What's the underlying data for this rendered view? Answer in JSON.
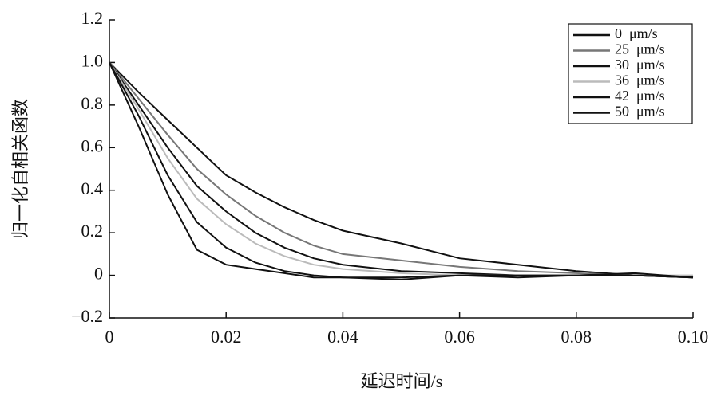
{
  "chart_data": {
    "type": "line",
    "xlabel": "延迟时间/s",
    "ylabel": "归一化自相关函数",
    "x": [
      0,
      0.005,
      0.01,
      0.015,
      0.02,
      0.025,
      0.03,
      0.035,
      0.04,
      0.05,
      0.06,
      0.07,
      0.08,
      0.09,
      0.1
    ],
    "series": [
      {
        "name": "0  μm/s",
        "color": "#111111",
        "values": [
          1.0,
          0.86,
          0.73,
          0.6,
          0.47,
          0.39,
          0.32,
          0.26,
          0.21,
          0.15,
          0.08,
          0.05,
          0.02,
          0.0,
          -0.01
        ]
      },
      {
        "name": "25  μm/s",
        "color": "#777777",
        "values": [
          1.0,
          0.83,
          0.66,
          0.5,
          0.38,
          0.28,
          0.2,
          0.14,
          0.1,
          0.07,
          0.04,
          0.02,
          0.01,
          0.0,
          -0.01
        ]
      },
      {
        "name": "30  μm/s",
        "color": "#111111",
        "values": [
          1.0,
          0.8,
          0.6,
          0.42,
          0.3,
          0.2,
          0.13,
          0.08,
          0.05,
          0.02,
          0.01,
          0.0,
          0.0,
          0.0,
          -0.01
        ]
      },
      {
        "name": "36  μm/s",
        "color": "#bbbbbb",
        "values": [
          1.0,
          0.78,
          0.55,
          0.36,
          0.24,
          0.15,
          0.09,
          0.05,
          0.03,
          0.01,
          0.0,
          0.0,
          0.0,
          0.0,
          0.0
        ]
      },
      {
        "name": "42  μm/s",
        "color": "#111111",
        "values": [
          1.0,
          0.75,
          0.47,
          0.25,
          0.13,
          0.06,
          0.02,
          0.0,
          -0.01,
          -0.01,
          0.0,
          0.0,
          0.0,
          0.0,
          -0.01
        ]
      },
      {
        "name": "50  μm/s",
        "color": "#111111",
        "values": [
          1.0,
          0.7,
          0.38,
          0.12,
          0.05,
          0.03,
          0.01,
          -0.01,
          -0.01,
          -0.02,
          0.0,
          -0.01,
          0.0,
          0.01,
          -0.01
        ]
      }
    ],
    "xlim": [
      0,
      0.1
    ],
    "xticks": [
      0,
      0.02,
      0.04,
      0.06,
      0.08,
      {
        "value": 0.1,
        "label": "0.10"
      }
    ],
    "ylim": [
      -0.2,
      1.2
    ],
    "yticks": [
      {
        "value": -0.2,
        "label": "−0.2"
      },
      0,
      0.2,
      0.4,
      0.6,
      0.8,
      {
        "value": 1,
        "label": "1.0"
      },
      1.2
    ],
    "legend": "upper right"
  }
}
